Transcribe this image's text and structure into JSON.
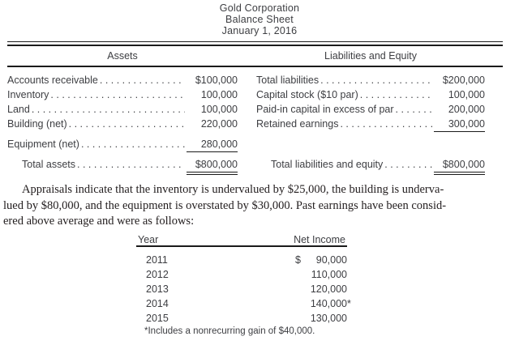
{
  "page": {
    "title_lines": [
      "Gold Corporation",
      "Balance Sheet",
      "January 1, 2016"
    ]
  },
  "balance_sheet": {
    "assets": {
      "header": "Assets",
      "rows": [
        {
          "label": "Accounts receivable",
          "amount": "$100,000"
        },
        {
          "label": "Inventory",
          "amount": "100,000"
        },
        {
          "label": "Land",
          "amount": "100,000"
        },
        {
          "label": "Building (net)",
          "amount": "220,000"
        },
        {
          "label": "Equipment (net)",
          "amount": "280,000",
          "underline": "single",
          "gap_before": true
        },
        {
          "label": "Total assets",
          "amount": "$800,000",
          "underline": "double",
          "indent": true,
          "gap_before": true
        }
      ]
    },
    "liabilities_equity": {
      "header": "Liabilities and Equity",
      "rows": [
        {
          "label": "Total liabilities",
          "amount": "$200,000"
        },
        {
          "label": "Capital stock ($10 par)",
          "amount": "100,000"
        },
        {
          "label": "Paid-in capital in excess of par",
          "amount": "200,000"
        },
        {
          "label": "Retained earnings",
          "amount": "300,000",
          "underline": "single"
        },
        {
          "blank": true,
          "gap_before": true
        },
        {
          "label": "Total liabilities and equity",
          "amount": "$800,000",
          "underline": "double",
          "indent": true,
          "gap_before": true
        }
      ]
    }
  },
  "paragraph": {
    "lines": [
      "Appraisals indicate that the inventory is undervalued by $25,000, the building is underva-",
      "lued by $80,000, and the equipment is overstated by $30,000. Past earnings have been consid-",
      "ered above average and were as follows:"
    ]
  },
  "income_table": {
    "col_year": "Year",
    "col_net_income": "Net Income",
    "rows": [
      {
        "year": "2011",
        "currency": "$",
        "net_income": "90,000"
      },
      {
        "year": "2012",
        "net_income": "110,000"
      },
      {
        "year": "2013",
        "net_income": "120,000"
      },
      {
        "year": "2014",
        "net_income": "140,000",
        "suffix": "*"
      },
      {
        "year": "2015",
        "net_income": "130,000"
      }
    ],
    "footnote": "*Includes a nonrecurring gain of $40,000."
  }
}
